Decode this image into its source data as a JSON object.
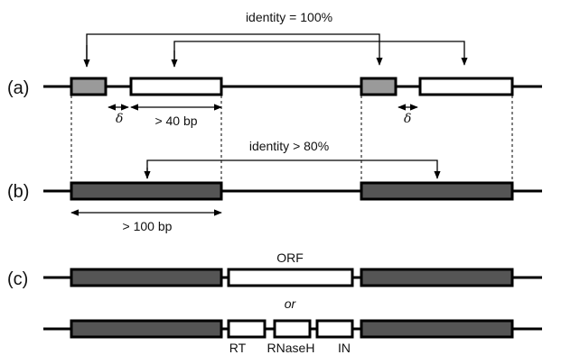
{
  "panels": {
    "a": "(a)",
    "b": "(b)",
    "c": "(c)"
  },
  "row_a": {
    "identity_label": "identity = 100%",
    "delta_symbol": "δ",
    "length_label": "> 40 bp"
  },
  "row_b": {
    "identity_label": "identity > 80%",
    "length_label": "> 100 bp"
  },
  "row_c": {
    "orf_label": "ORF",
    "or_label": "or",
    "domains": [
      "RT",
      "RNaseH",
      "IN"
    ]
  },
  "colors": {
    "ltr_dark": "#555555",
    "tsd_gray": "#9a9a9a",
    "line": "#000000"
  }
}
